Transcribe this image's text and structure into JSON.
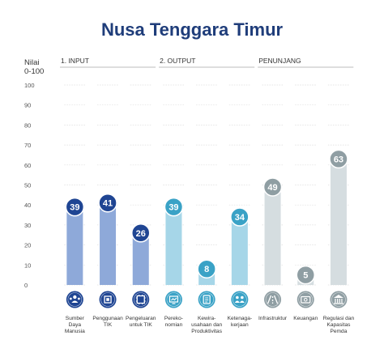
{
  "chart_data": {
    "type": "bar",
    "title": "Nusa Tenggara Timur",
    "ylabel": [
      "Nilai",
      "0-100"
    ],
    "ylim": [
      0,
      100
    ],
    "yticks": [
      0,
      10,
      20,
      30,
      40,
      50,
      60,
      70,
      80,
      90,
      100
    ],
    "grid": true,
    "groups": [
      {
        "label": "1. INPUT",
        "categories": [
          0,
          1,
          2
        ]
      },
      {
        "label": "2. OUTPUT",
        "categories": [
          3,
          4,
          5
        ]
      },
      {
        "label": "PENUNJANG",
        "categories": [
          6,
          7,
          8
        ]
      }
    ],
    "categories": [
      [
        "Sumber",
        "Daya",
        "Manusia"
      ],
      [
        "Penggunaan",
        "TIK"
      ],
      [
        "Pengeluaran",
        "untuk TIK"
      ],
      [
        "Perekо-",
        "nomian"
      ],
      [
        "Kewira-",
        "usahaan dan",
        "Produktivitas"
      ],
      [
        "Ketenaga-",
        "kerjaan"
      ],
      [
        "Infrastruktur"
      ],
      [
        "Keuangan"
      ],
      [
        "Regulasi dan",
        "Kapasitas",
        "Pemda"
      ]
    ],
    "values": [
      39,
      41,
      26,
      39,
      8,
      34,
      49,
      5,
      63
    ],
    "icons": [
      "people-icon",
      "chip-icon",
      "cpu-icon",
      "economy-icon",
      "business-icon",
      "workforce-icon",
      "infrastructure-icon",
      "finance-icon",
      "government-icon"
    ],
    "colors": {
      "bar": [
        "#8ea9d9",
        "#8ea9d9",
        "#8ea9d9",
        "#a6d6e8",
        "#a6d6e8",
        "#a6d6e8",
        "#d5dde0",
        "#d5dde0",
        "#d5dde0"
      ],
      "badge": [
        "#1f4593",
        "#1f4593",
        "#1f4593",
        "#3aa2c6",
        "#3aa2c6",
        "#3aa2c6",
        "#8f9ea3",
        "#8f9ea3",
        "#8f9ea3"
      ],
      "header_line": "#c9c9c9",
      "title": "#1f3d7a"
    }
  }
}
